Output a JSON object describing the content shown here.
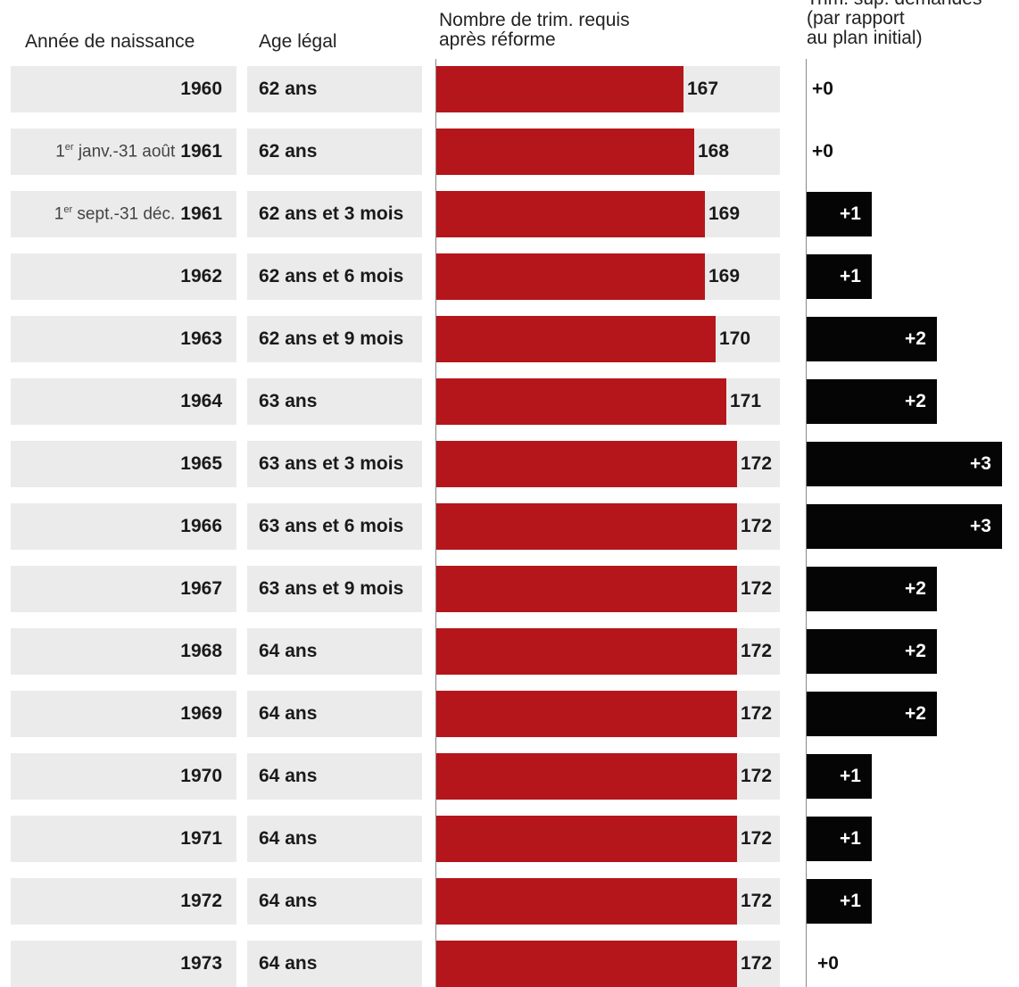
{
  "headers": {
    "birth_year": "Année de naissance",
    "legal_age": "Age légal",
    "trim_line1": "Nombre de trim. requis",
    "trim_line2": "après réforme",
    "extra_line1": "Trim. sup. demandés",
    "extra_line2": "(par rapport",
    "extra_line3": "au plan initial)"
  },
  "chart_data": {
    "type": "table",
    "columns": [
      "Année de naissance",
      "Age légal",
      "Nombre de trim. requis après réforme",
      "Trim. sup. demandés (par rapport au plan initial)"
    ],
    "xlim_trim": [
      150,
      172
    ],
    "xlim_extra": [
      0,
      3
    ],
    "rows": [
      {
        "prefix": "",
        "prefix_sup": "",
        "prefix_rest": "",
        "year": "1960",
        "age": "62 ans",
        "trim": 167,
        "trim_label": "167",
        "extra": 0,
        "extra_label": "+0"
      },
      {
        "prefix": "1",
        "prefix_sup": "er",
        "prefix_rest": " janv.-31 août",
        "year": "1961",
        "age": "62 ans",
        "trim": 168,
        "trim_label": "168",
        "extra": 0,
        "extra_label": "+0"
      },
      {
        "prefix": "1",
        "prefix_sup": "er",
        "prefix_rest": " sept.-31 déc.",
        "year": "1961",
        "age": "62 ans et 3 mois",
        "trim": 169,
        "trim_label": "169",
        "extra": 1,
        "extra_label": "+1"
      },
      {
        "prefix": "",
        "prefix_sup": "",
        "prefix_rest": "",
        "year": "1962",
        "age": "62 ans et 6 mois",
        "trim": 169,
        "trim_label": "169",
        "extra": 1,
        "extra_label": "+1"
      },
      {
        "prefix": "",
        "prefix_sup": "",
        "prefix_rest": "",
        "year": "1963",
        "age": "62 ans et 9 mois",
        "trim": 170,
        "trim_label": "170",
        "extra": 2,
        "extra_label": "+2"
      },
      {
        "prefix": "",
        "prefix_sup": "",
        "prefix_rest": "",
        "year": "1964",
        "age": "63 ans",
        "trim": 171,
        "trim_label": "171",
        "extra": 2,
        "extra_label": "+2"
      },
      {
        "prefix": "",
        "prefix_sup": "",
        "prefix_rest": "",
        "year": "1965",
        "age": "63 ans et 3 mois",
        "trim": 172,
        "trim_label": "172",
        "extra": 3,
        "extra_label": "+3"
      },
      {
        "prefix": "",
        "prefix_sup": "",
        "prefix_rest": "",
        "year": "1966",
        "age": "63 ans et 6 mois",
        "trim": 172,
        "trim_label": "172",
        "extra": 3,
        "extra_label": "+3"
      },
      {
        "prefix": "",
        "prefix_sup": "",
        "prefix_rest": "",
        "year": "1967",
        "age": "63 ans et 9 mois",
        "trim": 172,
        "trim_label": "172",
        "extra": 2,
        "extra_label": "+2"
      },
      {
        "prefix": "",
        "prefix_sup": "",
        "prefix_rest": "",
        "year": "1968",
        "age": "64 ans",
        "trim": 172,
        "trim_label": "172",
        "extra": 2,
        "extra_label": "+2"
      },
      {
        "prefix": "",
        "prefix_sup": "",
        "prefix_rest": "",
        "year": "1969",
        "age": "64 ans",
        "trim": 172,
        "trim_label": "172",
        "extra": 2,
        "extra_label": "+2"
      },
      {
        "prefix": "",
        "prefix_sup": "",
        "prefix_rest": "",
        "year": "1970",
        "age": "64 ans",
        "trim": 172,
        "trim_label": "172",
        "extra": 1,
        "extra_label": "+1"
      },
      {
        "prefix": "",
        "prefix_sup": "",
        "prefix_rest": "",
        "year": "1971",
        "age": "64 ans",
        "trim": 172,
        "trim_label": "172",
        "extra": 1,
        "extra_label": "+1"
      },
      {
        "prefix": "",
        "prefix_sup": "",
        "prefix_rest": "",
        "year": "1972",
        "age": "64 ans",
        "trim": 172,
        "trim_label": "172",
        "extra": 1,
        "extra_label": "+1"
      },
      {
        "prefix": "",
        "prefix_sup": "",
        "prefix_rest": "",
        "year": "1973",
        "age": "64 ans",
        "trim": 172,
        "trim_label": "172",
        "extra": 0,
        "extra_label": "+0"
      }
    ]
  },
  "colors": {
    "trim_bar": "#b5161b",
    "extra_bar": "#050505",
    "row_bg": "#ebebeb"
  }
}
